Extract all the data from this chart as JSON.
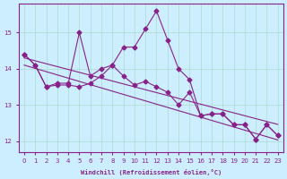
{
  "xlabel": "Windchill (Refroidissement éolien,°C)",
  "background_color": "#cceeff",
  "line_color": "#882288",
  "grid_color": "#aaddcc",
  "x_values": [
    0,
    1,
    2,
    3,
    4,
    5,
    6,
    7,
    8,
    9,
    10,
    11,
    12,
    13,
    14,
    15,
    16,
    17,
    18,
    19,
    20,
    21,
    22,
    23
  ],
  "y_main": [
    14.4,
    14.1,
    13.5,
    13.6,
    13.6,
    15.0,
    13.8,
    14.0,
    14.1,
    14.6,
    14.6,
    15.1,
    15.6,
    14.8,
    14.0,
    13.7,
    12.7,
    12.75,
    12.75,
    12.45,
    12.45,
    12.05,
    12.45,
    12.15
  ],
  "y_secondary": [
    14.4,
    14.1,
    13.5,
    13.55,
    13.55,
    13.5,
    13.6,
    13.8,
    14.1,
    13.8,
    13.55,
    13.65,
    13.5,
    13.35,
    13.0,
    13.35,
    12.7,
    12.75,
    12.75,
    12.45,
    12.45,
    12.05,
    12.45,
    12.15
  ],
  "y_trend1": [
    14.3,
    14.22,
    14.14,
    14.06,
    13.98,
    13.9,
    13.82,
    13.74,
    13.66,
    13.58,
    13.5,
    13.42,
    13.34,
    13.26,
    13.18,
    13.1,
    13.02,
    12.94,
    12.86,
    12.78,
    12.7,
    12.62,
    12.54,
    12.46
  ],
  "y_trend2": [
    14.1,
    14.01,
    13.92,
    13.83,
    13.74,
    13.65,
    13.56,
    13.47,
    13.38,
    13.29,
    13.2,
    13.11,
    13.02,
    12.93,
    12.84,
    12.75,
    12.66,
    12.57,
    12.48,
    12.39,
    12.3,
    12.21,
    12.12,
    12.03
  ],
  "xlim": [
    -0.5,
    23.5
  ],
  "ylim": [
    11.7,
    15.8
  ],
  "yticks": [
    12,
    13,
    14,
    15
  ],
  "xticks": [
    0,
    1,
    2,
    3,
    4,
    5,
    6,
    7,
    8,
    9,
    10,
    11,
    12,
    13,
    14,
    15,
    16,
    17,
    18,
    19,
    20,
    21,
    22,
    23
  ]
}
